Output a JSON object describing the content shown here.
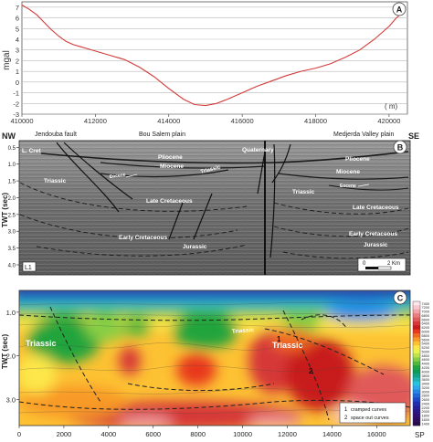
{
  "panelA": {
    "letter": "A",
    "ylabel": "mgal",
    "unit": "( m)",
    "yticks": [
      "7",
      "6",
      "5",
      "4",
      "3",
      "2",
      "1",
      "0",
      "-1",
      "-2",
      "-3"
    ],
    "xticks": [
      "410000",
      "412000",
      "414000",
      "416000",
      "418000",
      "420000"
    ]
  },
  "panelB": {
    "letter": "B",
    "nw": "NW",
    "se": "SE",
    "top_labels": [
      "Jendouba fault",
      "Bou Salem plain",
      "Medjerda Valley plain"
    ],
    "ylabel": "TWT (sec)",
    "yticks": [
      "0.5",
      "1.0",
      "1.5",
      "2.0",
      "2.5",
      "3.0",
      "3.5",
      "4.0"
    ],
    "units": [
      {
        "id": "lcret",
        "text": "L. Cret"
      },
      {
        "id": "quat",
        "text": "Quaternary"
      },
      {
        "id": "plio-l",
        "text": "Pliocene"
      },
      {
        "id": "plio-r",
        "text": "Pliocene"
      },
      {
        "id": "mio-l",
        "text": "Miocene"
      },
      {
        "id": "mio-r",
        "text": "Miocene"
      },
      {
        "id": "eoc-l",
        "text": "Eocene"
      },
      {
        "id": "eoc-r",
        "text": "Eocene"
      },
      {
        "id": "tri-c",
        "text": "Triassic"
      },
      {
        "id": "tri-l",
        "text": "Triassic"
      },
      {
        "id": "tri-r",
        "text": "Triassic"
      },
      {
        "id": "lc-l",
        "text": "Late Cretaceous"
      },
      {
        "id": "lc-r",
        "text": "Late Cretaceous"
      },
      {
        "id": "ec-l",
        "text": "Early Cretaceous"
      },
      {
        "id": "ec-r",
        "text": "Early Cretaceous"
      },
      {
        "id": "jur-l",
        "text": "Jurassic"
      },
      {
        "id": "jur-r",
        "text": "Jurassic"
      }
    ],
    "line_id": "L1",
    "scale_zero": "0",
    "scale_label": "2 Km"
  },
  "panelC": {
    "letter": "C",
    "ylabel": "TWT (sec)",
    "yticks": [
      "1.0",
      "2.0",
      "3.0"
    ],
    "xticks": [
      "0",
      "2000",
      "4000",
      "6000",
      "8000",
      "10000",
      "12000",
      "14000",
      "16000"
    ],
    "xunit": "SP",
    "labels": [
      "Triassic",
      "Triassic",
      "Triassic"
    ],
    "marker_1": "1",
    "marker_2": "2",
    "legend_1": "cramped curves",
    "legend_2": "space out curves",
    "colorbar": [
      "7400",
      "7200",
      "7000",
      "6800",
      "6600",
      "6400",
      "6200",
      "6000",
      "5800",
      "5600",
      "5400",
      "5200",
      "5000",
      "4800",
      "4600",
      "4400",
      "4200",
      "4000",
      "3800",
      "3600",
      "3400",
      "3200",
      "3000",
      "2800",
      "2600",
      "2400",
      "2200",
      "2000",
      "1800",
      "1600",
      "1400"
    ],
    "colorbar_colors": [
      "#fbe6ee",
      "#f8c6cf",
      "#f2a2a8",
      "#ea7d80",
      "#e05a5a",
      "#d63838",
      "#c81c1c",
      "#e8381e",
      "#f26a20",
      "#f89a28",
      "#fdc233",
      "#fde74a",
      "#e7f24d",
      "#bde24a",
      "#86cf44",
      "#4fb83e",
      "#23a43c",
      "#0f9a55",
      "#12a285",
      "#1db3b5",
      "#27c3df",
      "#2aa9ec",
      "#2388e4",
      "#1f68d8",
      "#1d48c8",
      "#1e2fb0",
      "#24209a",
      "#2b1686",
      "#301074",
      "#2e0c60",
      "#260a4c"
    ]
  },
  "chart_data": [
    {
      "type": "line",
      "title": "",
      "xlabel": "( m)",
      "ylabel": "mgal",
      "xlim": [
        410000,
        420500
      ],
      "ylim": [
        -3,
        7.5
      ],
      "x": [
        410000,
        410200,
        410400,
        410600,
        410800,
        411000,
        411200,
        411400,
        411600,
        411800,
        412000,
        412400,
        412800,
        413200,
        413600,
        414000,
        414400,
        414700,
        415000,
        415300,
        415600,
        416000,
        416400,
        416800,
        417200,
        417600,
        418000,
        418400,
        418800,
        419200,
        419600,
        420000,
        420200,
        420400
      ],
      "series": [
        {
          "values": [
            7.2,
            6.8,
            6.3,
            5.6,
            4.9,
            4.3,
            3.8,
            3.5,
            3.3,
            3.1,
            2.9,
            2.5,
            2.1,
            1.4,
            0.5,
            -0.6,
            -1.6,
            -2.1,
            -2.2,
            -2.0,
            -1.6,
            -1.0,
            -0.4,
            0.1,
            0.6,
            1.0,
            1.3,
            1.7,
            2.3,
            3.0,
            4.0,
            5.2,
            6.0,
            6.6
          ]
        }
      ],
      "grid": true
    },
    {
      "type": "heatmap",
      "title": "",
      "xlabel": "SP",
      "ylabel": "TWT (sec)",
      "xlim": [
        0,
        17500
      ],
      "ylim": [
        3.6,
        0.5
      ],
      "color_range": [
        1400,
        7400
      ]
    }
  ]
}
